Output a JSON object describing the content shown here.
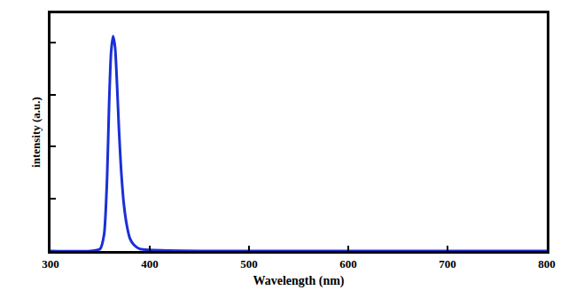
{
  "chart_data": {
    "type": "line",
    "x_label": "Wavelength (nm)",
    "y_label": "intensity (a.u.)",
    "x": [
      300,
      340,
      350,
      354,
      357,
      359,
      361,
      363,
      365,
      367,
      369,
      371,
      374,
      377,
      380,
      384,
      390,
      400,
      450,
      500,
      600,
      700,
      800
    ],
    "values": [
      0,
      0,
      0.01,
      0.08,
      0.35,
      0.7,
      0.95,
      1.03,
      0.98,
      0.8,
      0.58,
      0.4,
      0.22,
      0.12,
      0.06,
      0.03,
      0.01,
      0.005,
      0,
      0,
      0,
      0,
      0
    ],
    "color": "#1a2fd6",
    "xlim": [
      300,
      800
    ],
    "xticks": [
      300,
      400,
      500,
      600,
      700,
      800
    ],
    "ylim": [
      0,
      1.14
    ],
    "yticks": [
      0.25,
      0.5,
      0.75,
      1
    ],
    "tick_labels": "x",
    "grid": false
  }
}
